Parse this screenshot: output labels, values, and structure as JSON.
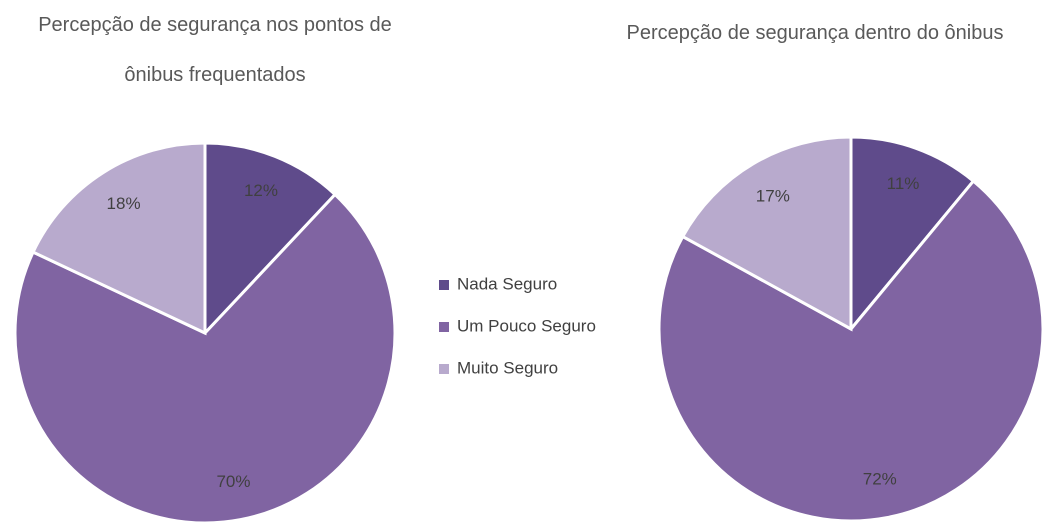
{
  "chart_data": [
    {
      "type": "pie",
      "title": "Percepção de segurança nos pontos de ônibus frequentados",
      "categories": [
        "Nada Seguro",
        "Um Pouco Seguro",
        "Muito Seguro"
      ],
      "values": [
        12,
        70,
        18
      ],
      "value_labels": [
        "12%",
        "70%",
        "18%"
      ],
      "colors": [
        "#5f4b8b",
        "#8064a2",
        "#b8aacd"
      ],
      "legend": "center"
    },
    {
      "type": "pie",
      "title": "Percepção de segurança dentro do ônibus",
      "categories": [
        "Nada Seguro",
        "Um Pouco Seguro",
        "Muito Seguro"
      ],
      "values": [
        11,
        72,
        17
      ],
      "value_labels": [
        "11%",
        "72%",
        "17%"
      ],
      "colors": [
        "#5f4b8b",
        "#8064a2",
        "#b8aacd"
      ]
    }
  ]
}
